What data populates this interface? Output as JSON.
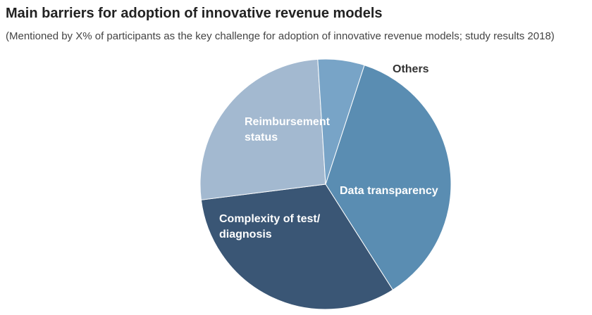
{
  "title": "Main barriers for adoption of innovative revenue models",
  "subtitle": "(Mentioned by X% of participants as the key challenge for adoption of innovative revenue models; study results 2018)",
  "chart_data": {
    "type": "pie",
    "start_angle_deg": 18,
    "slices": [
      {
        "label": "Data transparency",
        "label_lines": [
          "Data transparency"
        ],
        "value": 36,
        "color": "#5A8DB2",
        "label_color": "#ffffff"
      },
      {
        "label": "Complexity of test/ diagnosis",
        "label_lines": [
          "Complexity of test/",
          "diagnosis"
        ],
        "value": 32,
        "color": "#3A5675",
        "label_color": "#ffffff"
      },
      {
        "label": "Reimbursement status",
        "label_lines": [
          "Reimbursement",
          "status"
        ],
        "value": 26,
        "color": "#A3B9D0",
        "label_color": "#ffffff"
      },
      {
        "label": "Others",
        "label_lines": [
          "Others"
        ],
        "value": 6,
        "color": "#78A4C7",
        "label_color": "#333333"
      }
    ]
  }
}
